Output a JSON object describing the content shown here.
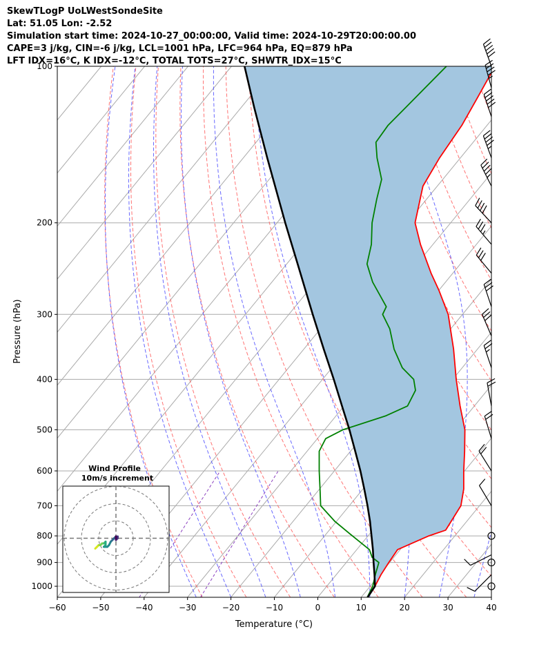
{
  "header": {
    "line1": "SkewTLogP UoLWestSondeSite",
    "line2": "Lat: 51.05   Lon: -2.52",
    "line3": "Simulation start time: 2024-10-27_00:00:00, Valid time: 2024-10-29T20:00:00.00",
    "line4": "CAPE=3 j/kg, CIN=-6 j/kg, LCL=1001 hPa, LFC=964 hPa, EQ=879 hPa",
    "line5": "LFT IDX=16°C, K IDX=-12°C, TOTAL TOTS=27°C, SHWTR_IDX=15°C"
  },
  "chart_data": {
    "type": "line",
    "subtype": "skew-t log-p",
    "xlabel": "Temperature (°C)",
    "ylabel": "Pressure (hPa)",
    "xlim": [
      -60,
      40
    ],
    "ylim": [
      1050,
      100
    ],
    "y_scale": "log",
    "x_ticks": [
      "−60",
      "−50",
      "−40",
      "−30",
      "−20",
      "−10",
      "0",
      "10",
      "20",
      "30",
      "40"
    ],
    "y_ticks": [
      {
        "p": 100,
        "label": "100"
      },
      {
        "p": 200,
        "label": "200"
      },
      {
        "p": 300,
        "label": "300"
      },
      {
        "p": 400,
        "label": "400"
      },
      {
        "p": 500,
        "label": "500"
      },
      {
        "p": 600,
        "label": "600"
      },
      {
        "p": 700,
        "label": "700"
      },
      {
        "p": 800,
        "label": "800"
      },
      {
        "p": 900,
        "label": "900"
      },
      {
        "p": 1000,
        "label": "1000"
      }
    ],
    "grid": true,
    "colors": {
      "temperature": "#ff0000",
      "dewpoint": "#008000",
      "parcel": "#000000",
      "cape_fill": "#a3c6e0",
      "dry_adiabat": "#ff5a5a",
      "moist_adiabat": "#4d4dff",
      "mixing_ratio": "#8a3fbf",
      "isotherm": "#aaaaaa"
    },
    "series": [
      {
        "key": "temperature",
        "points": [
          {
            "p": 1050,
            "t": 11.5
          },
          {
            "p": 1000,
            "t": 11.1
          },
          {
            "p": 950,
            "t": 10.3
          },
          {
            "p": 900,
            "t": 9.8
          },
          {
            "p": 850,
            "t": 9.4
          },
          {
            "p": 800,
            "t": 14.0
          },
          {
            "p": 780,
            "t": 16.8
          },
          {
            "p": 750,
            "t": 16.4
          },
          {
            "p": 700,
            "t": 15.7
          },
          {
            "p": 650,
            "t": 13.2
          },
          {
            "p": 600,
            "t": 9.8
          },
          {
            "p": 550,
            "t": 6.3
          },
          {
            "p": 500,
            "t": 2.3
          },
          {
            "p": 450,
            "t": -3.3
          },
          {
            "p": 400,
            "t": -9.2
          },
          {
            "p": 350,
            "t": -15.5
          },
          {
            "p": 300,
            "t": -23.3
          },
          {
            "p": 270,
            "t": -29.9
          },
          {
            "p": 250,
            "t": -35.0
          },
          {
            "p": 220,
            "t": -42.9
          },
          {
            "p": 200,
            "t": -48.2
          },
          {
            "p": 170,
            "t": -53.3
          },
          {
            "p": 150,
            "t": -54.8
          },
          {
            "p": 130,
            "t": -55.8
          },
          {
            "p": 115,
            "t": -57.4
          },
          {
            "p": 100,
            "t": -59.3
          }
        ]
      },
      {
        "key": "dewpoint",
        "points": [
          {
            "p": 1050,
            "t": 11.4
          },
          {
            "p": 1000,
            "t": 10.6
          },
          {
            "p": 950,
            "t": 9.0
          },
          {
            "p": 900,
            "t": 7.5
          },
          {
            "p": 880,
            "t": 5.0
          },
          {
            "p": 850,
            "t": 2.9
          },
          {
            "p": 800,
            "t": -3.6
          },
          {
            "p": 750,
            "t": -10.4
          },
          {
            "p": 700,
            "t": -16.6
          },
          {
            "p": 650,
            "t": -19.9
          },
          {
            "p": 600,
            "t": -23.5
          },
          {
            "p": 550,
            "t": -27.2
          },
          {
            "p": 520,
            "t": -28.1
          },
          {
            "p": 500,
            "t": -25.8
          },
          {
            "p": 470,
            "t": -18.5
          },
          {
            "p": 450,
            "t": -15.4
          },
          {
            "p": 420,
            "t": -16.5
          },
          {
            "p": 400,
            "t": -19.0
          },
          {
            "p": 380,
            "t": -23.8
          },
          {
            "p": 350,
            "t": -29.2
          },
          {
            "p": 320,
            "t": -34.0
          },
          {
            "p": 300,
            "t": -38.4
          },
          {
            "p": 290,
            "t": -39.0
          },
          {
            "p": 260,
            "t": -46.8
          },
          {
            "p": 240,
            "t": -51.5
          },
          {
            "p": 220,
            "t": -54.2
          },
          {
            "p": 200,
            "t": -58.1
          },
          {
            "p": 180,
            "t": -61.5
          },
          {
            "p": 165,
            "t": -64.1
          },
          {
            "p": 150,
            "t": -69.2
          },
          {
            "p": 140,
            "t": -72.4
          },
          {
            "p": 130,
            "t": -72.8
          },
          {
            "p": 120,
            "t": -72.1
          },
          {
            "p": 100,
            "t": -70.5
          }
        ]
      },
      {
        "key": "parcel",
        "points": [
          {
            "p": 1050,
            "t": 11.5
          },
          {
            "p": 1000,
            "t": 11.1
          },
          {
            "p": 950,
            "t": 8.8
          },
          {
            "p": 900,
            "t": 6.3
          },
          {
            "p": 850,
            "t": 3.7
          },
          {
            "p": 800,
            "t": 0.8
          },
          {
            "p": 750,
            "t": -2.3
          },
          {
            "p": 700,
            "t": -5.8
          },
          {
            "p": 650,
            "t": -9.7
          },
          {
            "p": 600,
            "t": -14.0
          },
          {
            "p": 550,
            "t": -18.9
          },
          {
            "p": 500,
            "t": -24.3
          },
          {
            "p": 450,
            "t": -30.5
          },
          {
            "p": 400,
            "t": -37.4
          },
          {
            "p": 350,
            "t": -45.4
          },
          {
            "p": 300,
            "t": -54.5
          },
          {
            "p": 250,
            "t": -65.1
          },
          {
            "p": 200,
            "t": -78.1
          },
          {
            "p": 150,
            "t": -94.5
          },
          {
            "p": 120,
            "t": -107.0
          },
          {
            "p": 100,
            "t": -117.0
          }
        ]
      }
    ],
    "wind_barbs": [
      {
        "p": 1000,
        "u": 0,
        "v": 0
      },
      {
        "p": 950,
        "u": 3,
        "v": 3
      },
      {
        "p": 900,
        "u": 0,
        "v": 0
      },
      {
        "p": 870,
        "u": 4,
        "v": 2
      },
      {
        "p": 800,
        "u": 0,
        "v": 0
      },
      {
        "p": 700,
        "u": 3,
        "v": -5
      },
      {
        "p": 600,
        "u": 5,
        "v": -8
      },
      {
        "p": 520,
        "u": 3,
        "v": -10
      },
      {
        "p": 450,
        "u": 2,
        "v": -11
      },
      {
        "p": 380,
        "u": 4,
        "v": -12
      },
      {
        "p": 330,
        "u": 6,
        "v": -14
      },
      {
        "p": 290,
        "u": 5,
        "v": -15
      },
      {
        "p": 250,
        "u": 10,
        "v": -12
      },
      {
        "p": 220,
        "u": 12,
        "v": -14
      },
      {
        "p": 200,
        "u": 14,
        "v": -15
      },
      {
        "p": 170,
        "u": 10,
        "v": -20
      },
      {
        "p": 150,
        "u": 8,
        "v": -22
      },
      {
        "p": 125,
        "u": 8,
        "v": -24
      },
      {
        "p": 110,
        "u": 6,
        "v": -22
      },
      {
        "p": 100,
        "u": 9,
        "v": -25
      }
    ],
    "hodograph": {
      "title": "Wind Profile",
      "subtitle": "10m/s increment",
      "ring_increment": 10,
      "rings": 3,
      "points": [
        {
          "u": -12,
          "v": -6
        },
        {
          "u": -11,
          "v": -5
        },
        {
          "u": -10,
          "v": -4
        },
        {
          "u": -9,
          "v": -4
        },
        {
          "u": -8,
          "v": -3
        },
        {
          "u": -7,
          "v": -3
        },
        {
          "u": -6,
          "v": -2
        },
        {
          "u": -6,
          "v": -4
        },
        {
          "u": -7,
          "v": -5
        },
        {
          "u": -5,
          "v": -5
        },
        {
          "u": -4,
          "v": -4
        },
        {
          "u": -3,
          "v": -2
        },
        {
          "u": -2,
          "v": -1
        },
        {
          "u": -1,
          "v": 0
        },
        {
          "u": 0,
          "v": 1
        },
        {
          "u": 1,
          "v": 1
        },
        {
          "u": 1,
          "v": 0
        },
        {
          "u": 0,
          "v": -1
        },
        {
          "u": 0,
          "v": 0
        },
        {
          "u": 0,
          "v": 1
        }
      ]
    }
  }
}
